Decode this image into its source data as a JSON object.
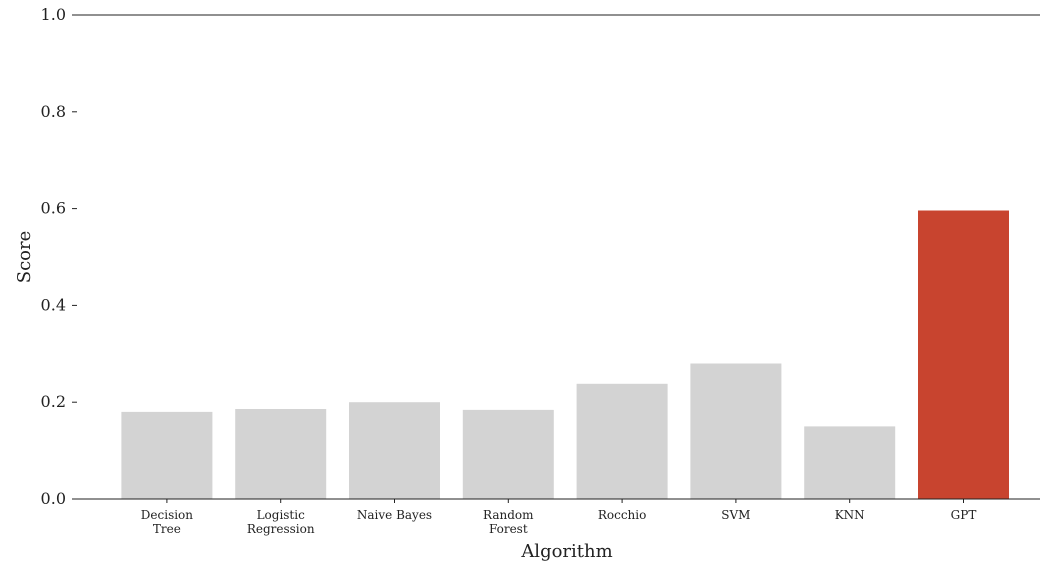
{
  "chart_data": {
    "type": "bar",
    "categories": [
      [
        "Decision",
        "Tree"
      ],
      [
        "Logistic",
        "Regression"
      ],
      [
        "Naive Bayes"
      ],
      [
        "Random",
        "Forest"
      ],
      [
        "Rocchio"
      ],
      [
        "SVM"
      ],
      [
        "KNN"
      ],
      [
        "GPT"
      ]
    ],
    "values": [
      0.18,
      0.186,
      0.2,
      0.184,
      0.238,
      0.28,
      0.15,
      0.596
    ],
    "highlight_index": 7,
    "colors": {
      "default": "#d3d3d3",
      "highlight": "#c8442f",
      "axis": "#222222"
    },
    "xlabel": "Algorithm",
    "ylabel": "Score",
    "ylim": [
      0,
      1.0
    ],
    "yticks": [
      "0.0",
      "0.2",
      "0.4",
      "0.6",
      "0.8",
      "1.0"
    ],
    "grid": false
  }
}
